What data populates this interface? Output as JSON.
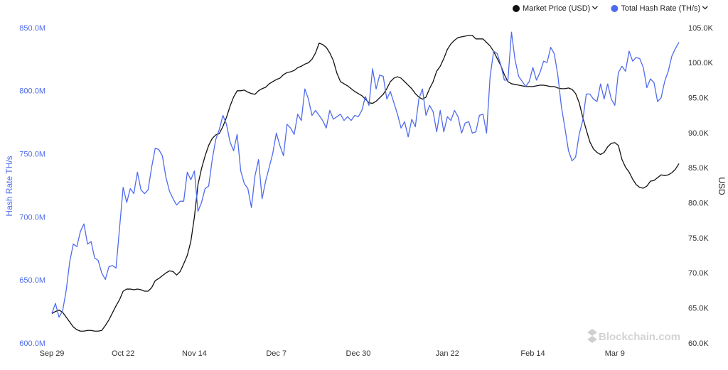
{
  "chart_data": {
    "type": "line",
    "categories": [
      "Sep 29",
      null,
      null,
      null,
      null,
      null,
      null,
      null,
      null,
      null,
      null,
      null,
      null,
      null,
      null,
      null,
      null,
      null,
      null,
      null,
      "Oct 22",
      null,
      null,
      null,
      null,
      null,
      null,
      null,
      null,
      null,
      null,
      null,
      null,
      null,
      null,
      null,
      null,
      null,
      null,
      null,
      "Nov 14",
      null,
      null,
      null,
      null,
      null,
      null,
      null,
      null,
      null,
      null,
      null,
      null,
      null,
      null,
      null,
      null,
      null,
      null,
      null,
      null,
      null,
      null,
      "Dec 7",
      null,
      null,
      null,
      null,
      null,
      null,
      null,
      null,
      null,
      null,
      null,
      null,
      null,
      null,
      null,
      null,
      null,
      null,
      null,
      null,
      null,
      null,
      "Dec 30",
      null,
      null,
      null,
      null,
      null,
      null,
      null,
      null,
      null,
      null,
      null,
      null,
      null,
      null,
      null,
      null,
      null,
      null,
      null,
      null,
      null,
      null,
      null,
      null,
      "Jan 22",
      null,
      null,
      null,
      null,
      null,
      null,
      null,
      null,
      null,
      null,
      null,
      null,
      null,
      null,
      null,
      null,
      null,
      null,
      null,
      null,
      null,
      null,
      null,
      "Feb 14",
      null,
      null,
      null,
      null,
      null,
      null,
      null,
      null,
      null,
      null,
      null,
      null,
      null,
      null,
      null,
      null,
      null,
      null,
      null,
      null,
      null,
      null,
      "Mar 9",
      null,
      null,
      null,
      null,
      null,
      null,
      null,
      null,
      null,
      null,
      null,
      null,
      null,
      null,
      null,
      null,
      null,
      null
    ],
    "series": [
      {
        "name": "Market Price (USD)",
        "color": "#111111",
        "axis": "y2",
        "values": [
          64.3,
          64.6,
          64.8,
          64.5,
          63.8,
          63.1,
          62.4,
          62.0,
          61.8,
          61.8,
          61.9,
          61.9,
          61.8,
          61.8,
          61.9,
          62.6,
          63.4,
          64.4,
          65.4,
          66.3,
          67.5,
          67.8,
          67.8,
          67.7,
          67.8,
          67.7,
          67.5,
          67.5,
          68.0,
          69.0,
          69.3,
          69.7,
          70.1,
          70.4,
          70.3,
          69.8,
          70.3,
          71.4,
          72.6,
          74.6,
          78.1,
          82.7,
          85.0,
          86.8,
          88.3,
          89.3,
          89.8,
          90.0,
          91.0,
          92.3,
          93.9,
          95.2,
          96.1,
          96.1,
          96.2,
          95.9,
          95.7,
          95.6,
          96.1,
          96.4,
          96.6,
          97.1,
          97.4,
          97.7,
          97.9,
          98.4,
          98.7,
          98.8,
          99.0,
          99.4,
          99.6,
          99.9,
          100.1,
          100.6,
          101.5,
          102.9,
          102.7,
          102.3,
          101.5,
          100.4,
          98.6,
          97.4,
          97.1,
          96.8,
          96.4,
          96.0,
          95.7,
          95.4,
          94.9,
          94.4,
          94.3,
          94.6,
          95.1,
          95.6,
          96.4,
          97.4,
          97.9,
          98.1,
          97.9,
          97.4,
          96.9,
          96.4,
          95.7,
          95.2,
          94.9,
          95.2,
          96.4,
          97.4,
          98.9,
          99.6,
          100.7,
          102.0,
          102.8,
          103.3,
          103.7,
          103.8,
          103.9,
          104.0,
          104.0,
          103.5,
          103.5,
          103.5,
          103.0,
          102.5,
          101.7,
          100.7,
          99.7,
          98.4,
          97.4,
          97.1,
          97.0,
          96.9,
          96.8,
          96.7,
          96.7,
          96.7,
          96.8,
          96.9,
          96.9,
          96.8,
          96.7,
          96.7,
          96.5,
          96.4,
          96.4,
          96.5,
          96.3,
          95.7,
          94.4,
          92.3,
          90.5,
          88.8,
          87.8,
          87.3,
          87.0,
          87.3,
          88.1,
          88.6,
          88.7,
          88.3,
          86.3,
          85.2,
          84.5,
          83.5,
          82.7,
          82.3,
          82.2,
          82.5,
          83.2,
          83.3,
          83.7,
          84.1,
          84.0,
          84.1,
          84.4,
          84.9,
          85.7
        ]
      },
      {
        "name": "Total Hash Rate (TH/s)",
        "color": "#4f6bed",
        "values": [
          624,
          632,
          621,
          626,
          642,
          665,
          679,
          677,
          689,
          695,
          679,
          681,
          668,
          666,
          656,
          651,
          661,
          662,
          660,
          692,
          724,
          712,
          723,
          719,
          736,
          722,
          719,
          722,
          740,
          755,
          754,
          749,
          732,
          721,
          715,
          710,
          713,
          713,
          736,
          730,
          737,
          705,
          712,
          723,
          725,
          746,
          762,
          770,
          781,
          774,
          760,
          753,
          766,
          737,
          727,
          723,
          708,
          733,
          746,
          715,
          729,
          740,
          751,
          767,
          757,
          749,
          774,
          771,
          766,
          782,
          777,
          802,
          794,
          781,
          785,
          781,
          777,
          771,
          785,
          778,
          780,
          782,
          777,
          780,
          777,
          781,
          780,
          785,
          796,
          789,
          818,
          802,
          813,
          812,
          794,
          800,
          791,
          782,
          771,
          776,
          764,
          778,
          772,
          794,
          802,
          781,
          789,
          784,
          768,
          785,
          768,
          780,
          777,
          785,
          780,
          767,
          775,
          776,
          767,
          768,
          781,
          782,
          767,
          812,
          832,
          830,
          821,
          809,
          809,
          847,
          825,
          812,
          808,
          804,
          808,
          819,
          809,
          815,
          824,
          823,
          835,
          830,
          813,
          788,
          771,
          753,
          745,
          748,
          766,
          777,
          798,
          798,
          794,
          792,
          806,
          794,
          806,
          794,
          789,
          815,
          820,
          816,
          832,
          824,
          827,
          826,
          819,
          803,
          810,
          807,
          792,
          795,
          808,
          816,
          828,
          834,
          839
        ]
      }
    ],
    "ylabel": "Hash Rate TH/s",
    "y2label": "USD",
    "ylim": [
      600,
      850
    ],
    "yticks": [
      {
        "value": 600,
        "label": "600.0M"
      },
      {
        "value": 650,
        "label": "650.0M"
      },
      {
        "value": 700,
        "label": "700.0M"
      },
      {
        "value": 750,
        "label": "750.0M"
      },
      {
        "value": 800,
        "label": "800.0M"
      },
      {
        "value": 850,
        "label": "850.0M"
      }
    ],
    "y2lim": [
      60,
      105
    ],
    "y2ticks": [
      {
        "value": 60,
        "label": "60.0K"
      },
      {
        "value": 65,
        "label": "65.0K"
      },
      {
        "value": 70,
        "label": "70.0K"
      },
      {
        "value": 75,
        "label": "75.0K"
      },
      {
        "value": 80,
        "label": "80.0K"
      },
      {
        "value": 85,
        "label": "85.0K"
      },
      {
        "value": 90,
        "label": "90.0K"
      },
      {
        "value": 95,
        "label": "95.0K"
      },
      {
        "value": 100,
        "label": "100.0K"
      },
      {
        "value": 105,
        "label": "105.0K"
      }
    ],
    "grid": false,
    "legend": "top-right",
    "watermark": "Blockchain.com"
  }
}
